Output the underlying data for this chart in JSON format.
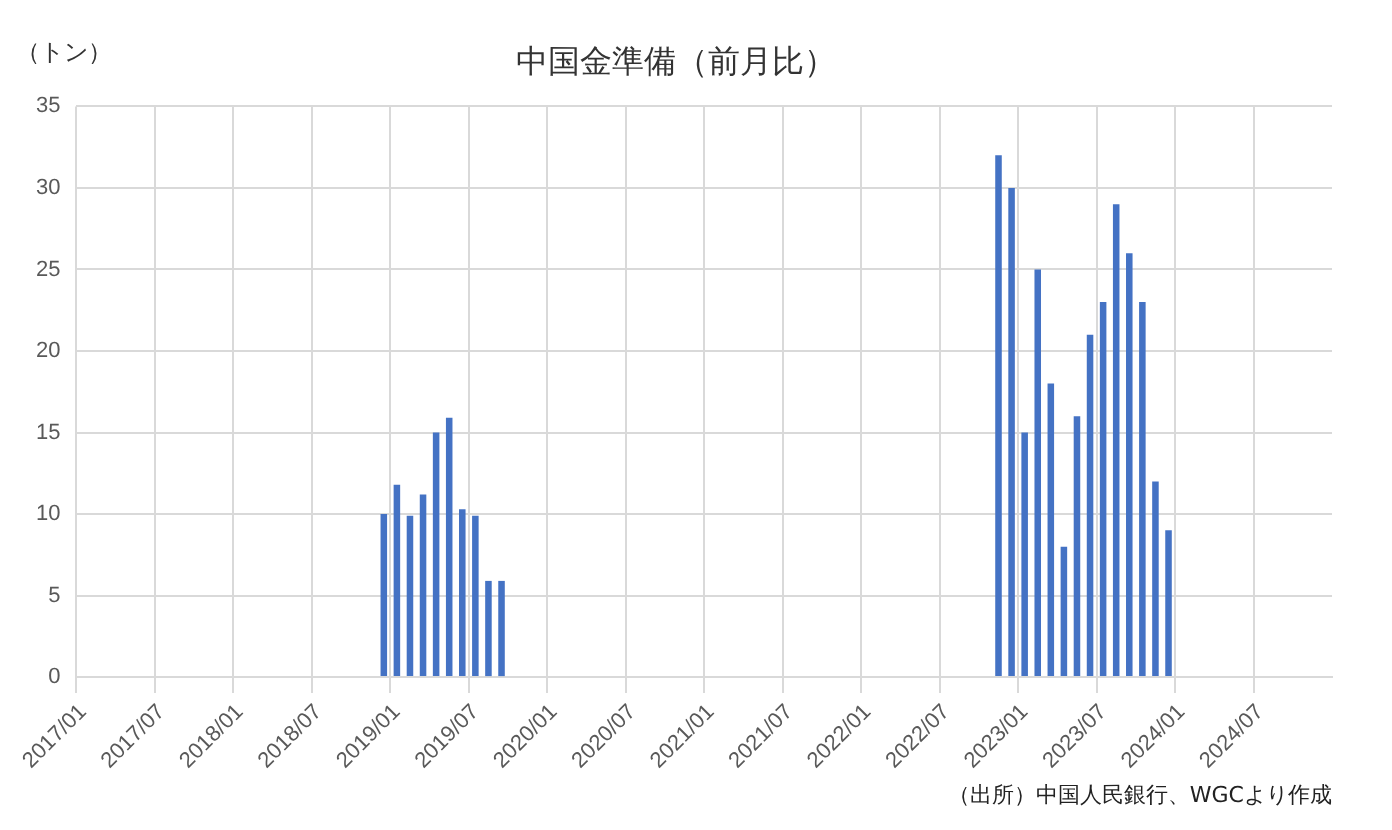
{
  "chart_data": {
    "type": "bar",
    "title": "中国金準備（前月比）",
    "ylabel": "（トン）",
    "categories": [
      "2017/01",
      null,
      null,
      null,
      null,
      null,
      "2017/07",
      null,
      null,
      null,
      null,
      null,
      "2018/01",
      null,
      null,
      null,
      null,
      null,
      "2018/07",
      null,
      null,
      null,
      null,
      null,
      "2019/01",
      null,
      null,
      null,
      null,
      null,
      "2019/07",
      null,
      null,
      null,
      null,
      null,
      "2020/01",
      null,
      null,
      null,
      null,
      null,
      "2020/07",
      null,
      null,
      null,
      null,
      null,
      "2021/01",
      null,
      null,
      null,
      null,
      null,
      "2021/07",
      null,
      null,
      null,
      null,
      null,
      "2022/01",
      null,
      null,
      null,
      null,
      null,
      "2022/07",
      null,
      null,
      null,
      null,
      null,
      "2023/01",
      null,
      null,
      null,
      null,
      null,
      "2023/07",
      null,
      null,
      null,
      null,
      null,
      "2024/01",
      null,
      null,
      null,
      null,
      null,
      "2024/07",
      null,
      null,
      null,
      null,
      null
    ],
    "values": [
      0,
      0,
      0,
      0,
      0,
      0,
      0,
      0,
      0,
      0,
      0,
      0,
      0,
      0,
      0,
      0,
      0,
      0,
      0,
      0,
      0,
      0,
      0,
      10,
      11.8,
      9.9,
      11.2,
      15,
      15.9,
      10.3,
      9.9,
      5.9,
      5.9,
      0,
      0,
      0,
      0,
      0,
      0,
      0,
      0,
      0,
      0,
      0,
      0,
      0,
      0,
      0,
      0,
      0,
      0,
      0,
      0,
      0,
      0,
      0,
      0,
      0,
      0,
      0,
      0,
      0,
      0,
      0,
      0,
      0,
      0,
      0,
      0,
      0,
      32,
      30,
      15,
      25,
      18,
      8,
      16,
      21,
      23,
      29,
      26,
      23,
      12,
      9,
      0,
      0,
      0,
      0,
      0,
      0,
      0,
      0,
      0,
      0,
      0,
      0
    ],
    "color": "#4472c4",
    "ylim": [
      0,
      35
    ],
    "yticks": [
      0,
      5,
      10,
      15,
      20,
      25,
      30,
      35
    ],
    "grid": true,
    "legend": false,
    "annotations": [
      "（出所）中国人民銀行、WGCより作成"
    ]
  }
}
